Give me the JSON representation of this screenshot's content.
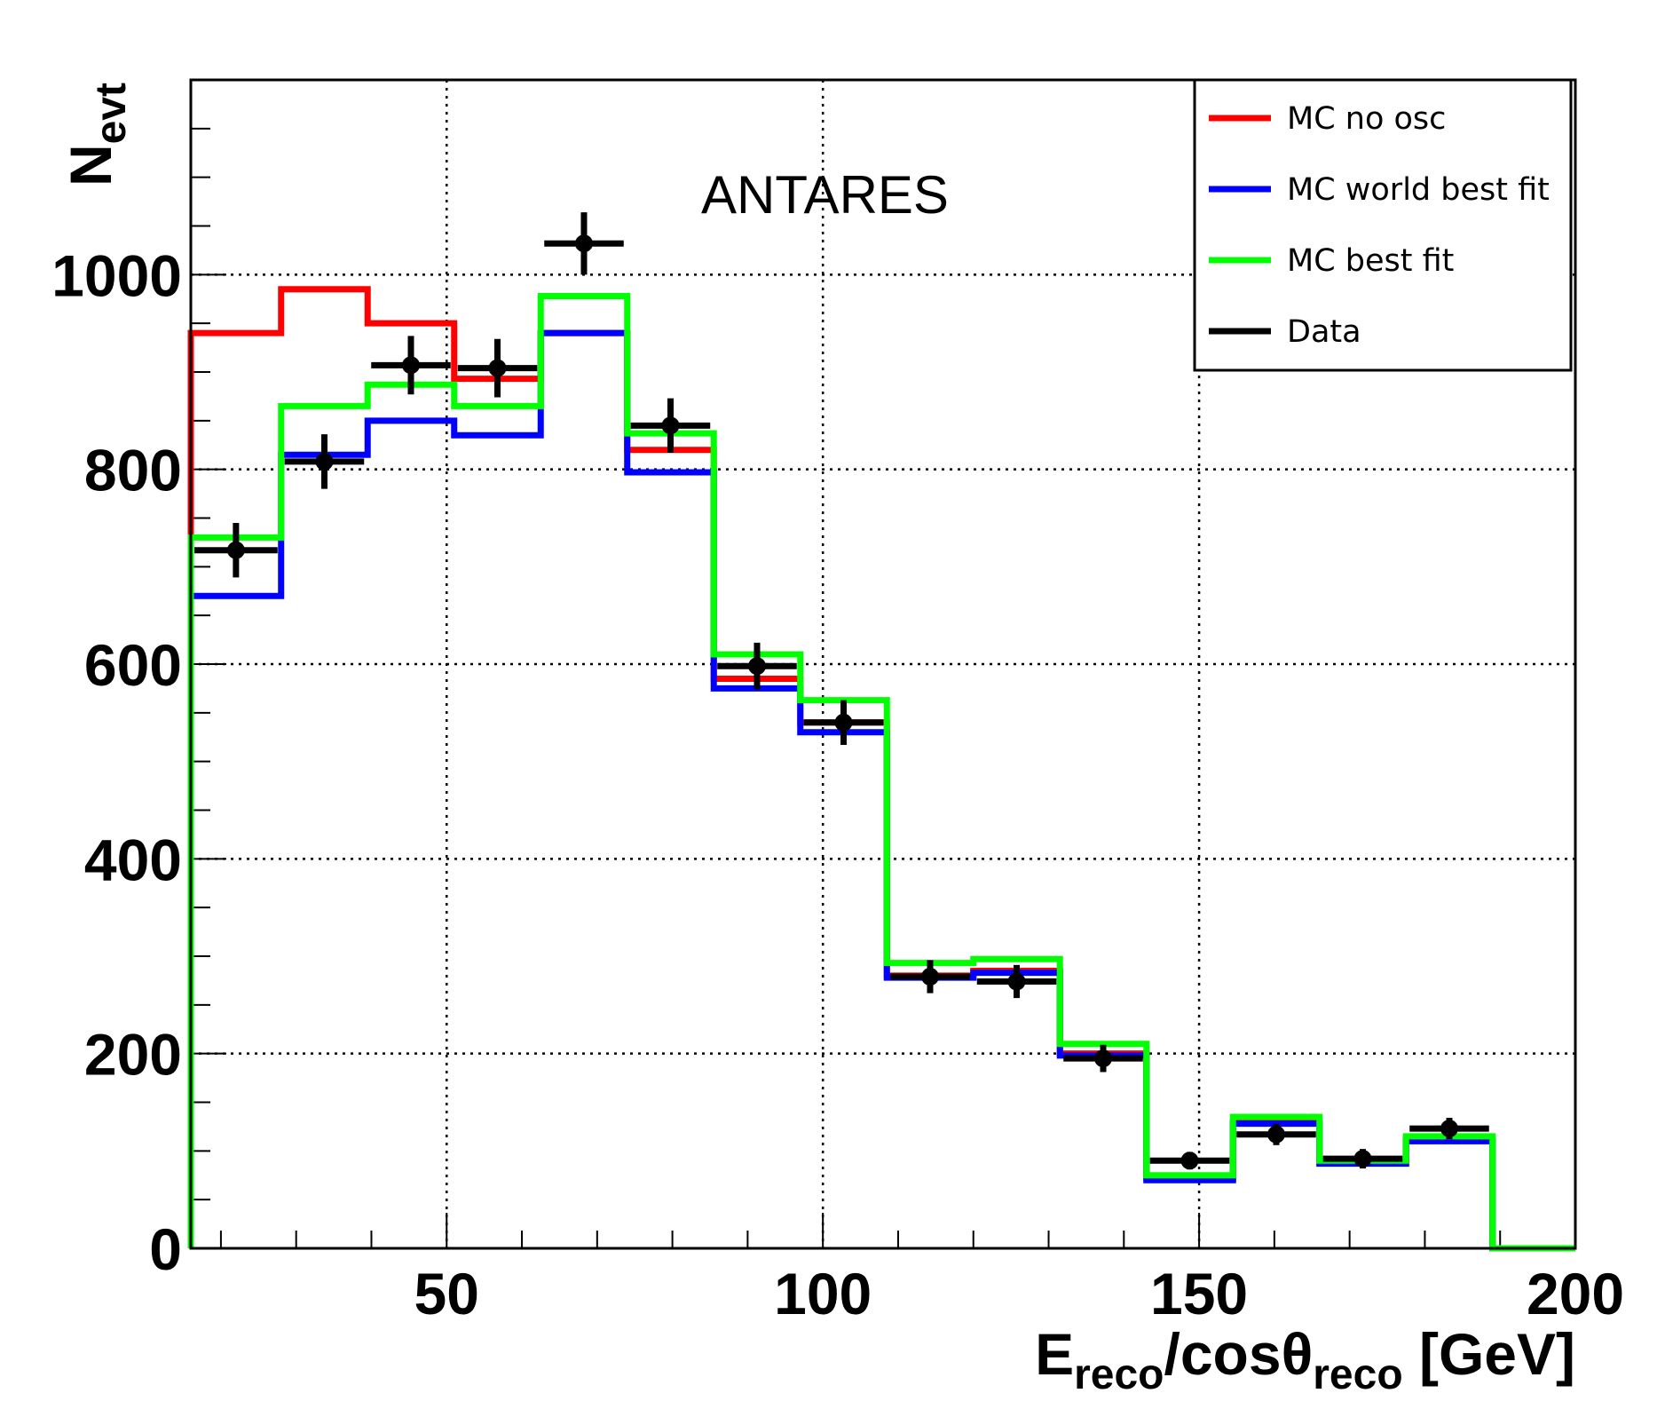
{
  "chart_data": {
    "type": "line",
    "title": "",
    "annotation": "ANTARES",
    "xlabel": {
      "main": "E",
      "sub1": "reco",
      "mid": "/cosθ",
      "sub2": "reco",
      "tail": " [GeV]"
    },
    "ylabel": {
      "main": "N",
      "sub": "evt"
    },
    "xlim": [
      16,
      200
    ],
    "ylim": [
      0,
      1200
    ],
    "x_ticks": [
      50,
      100,
      150,
      200
    ],
    "y_ticks": [
      0,
      200,
      400,
      600,
      800,
      1000
    ],
    "x_tick_labels": [
      "50",
      "100",
      "150",
      "200"
    ],
    "y_tick_labels": [
      "0",
      "200",
      "400",
      "600",
      "800",
      "1000"
    ],
    "grid": true,
    "legend_position": "top-right",
    "bin_edges": [
      16,
      28,
      39.5,
      51,
      62.5,
      74,
      85.5,
      97,
      108.5,
      120,
      131.5,
      143,
      154.5,
      166,
      177.5,
      189,
      200
    ],
    "series": [
      {
        "name": "MC no osc",
        "color": "#ff0000",
        "style": "step",
        "values": [
          940,
          985,
          950,
          893,
          940,
          820,
          585,
          540,
          280,
          285,
          200,
          72,
          130,
          88,
          112,
          0
        ]
      },
      {
        "name": "MC world best fit",
        "color": "#0000ff",
        "style": "step",
        "values": [
          670,
          815,
          850,
          835,
          940,
          797,
          575,
          530,
          278,
          283,
          198,
          70,
          128,
          87,
          110,
          0
        ]
      },
      {
        "name": "MC best fit",
        "color": "#00ff00",
        "style": "step",
        "values": [
          730,
          865,
          887,
          865,
          978,
          837,
          610,
          563,
          293,
          297,
          210,
          75,
          135,
          90,
          115,
          0
        ]
      },
      {
        "name": "Data",
        "color": "#000000",
        "style": "points",
        "values": [
          717,
          808,
          907,
          904,
          1032,
          845,
          598,
          540,
          279,
          274,
          195,
          90,
          117,
          92,
          123
        ],
        "errors": [
          28,
          28,
          30,
          30,
          32,
          28,
          24,
          23,
          17,
          17,
          14,
          9,
          11,
          10,
          11
        ]
      }
    ]
  }
}
